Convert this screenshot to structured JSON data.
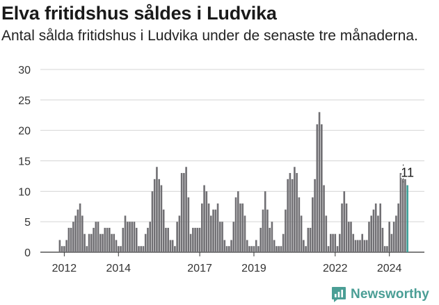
{
  "header": {
    "title": "Elva fritidshus såldes i Ludvika",
    "subtitle": "Antal sålda fritidshus i Ludvika under de senaste tre månaderna."
  },
  "brand": {
    "name": "Newsworthy",
    "icon": "newsworthy-logo-icon",
    "color": "#4a9e95"
  },
  "chart_data": {
    "type": "bar",
    "title": "Elva fritidshus såldes i Ludvika",
    "subtitle": "Antal sålda fritidshus i Ludvika under de senaste tre månaderna.",
    "xlabel": "",
    "ylabel": "",
    "ylim": [
      0,
      30
    ],
    "yticks": [
      0,
      5,
      10,
      15,
      20,
      25,
      30
    ],
    "xtick_labels": [
      "2012",
      "2014",
      "2017",
      "2019",
      "2022",
      "2024"
    ],
    "grid": true,
    "bar_color": "#706f73",
    "highlight_color": "#3a9f97",
    "highlight_label": "11",
    "x_start": "2011-11",
    "x_end": "2024-11",
    "values": [
      2,
      1,
      1,
      2,
      4,
      4,
      5,
      6,
      7,
      8,
      6,
      3,
      1,
      3,
      3,
      4,
      5,
      5,
      3,
      3,
      4,
      4,
      4,
      3,
      3,
      2,
      1,
      1,
      4,
      6,
      5,
      5,
      5,
      5,
      4,
      1,
      1,
      1,
      3,
      4,
      5,
      10,
      12,
      14,
      12,
      11,
      7,
      4,
      4,
      2,
      2,
      1,
      5,
      6,
      13,
      13,
      14,
      9,
      3,
      4,
      4,
      4,
      4,
      8,
      11,
      10,
      8,
      6,
      7,
      7,
      8,
      5,
      5,
      2,
      1,
      1,
      2,
      5,
      9,
      10,
      8,
      8,
      6,
      2,
      1,
      1,
      1,
      2,
      1,
      4,
      7,
      10,
      7,
      4,
      5,
      2,
      1,
      1,
      1,
      3,
      7,
      12,
      13,
      12,
      14,
      13,
      9,
      6,
      2,
      1,
      4,
      4,
      9,
      12,
      21,
      23,
      21,
      11,
      6,
      1,
      3,
      3,
      3,
      1,
      3,
      8,
      10,
      8,
      5,
      5,
      3,
      2,
      2,
      2,
      3,
      2,
      2,
      5,
      6,
      7,
      8,
      6,
      8,
      4,
      1,
      1,
      5,
      3,
      5,
      6,
      8,
      13,
      12,
      12,
      11
    ]
  }
}
